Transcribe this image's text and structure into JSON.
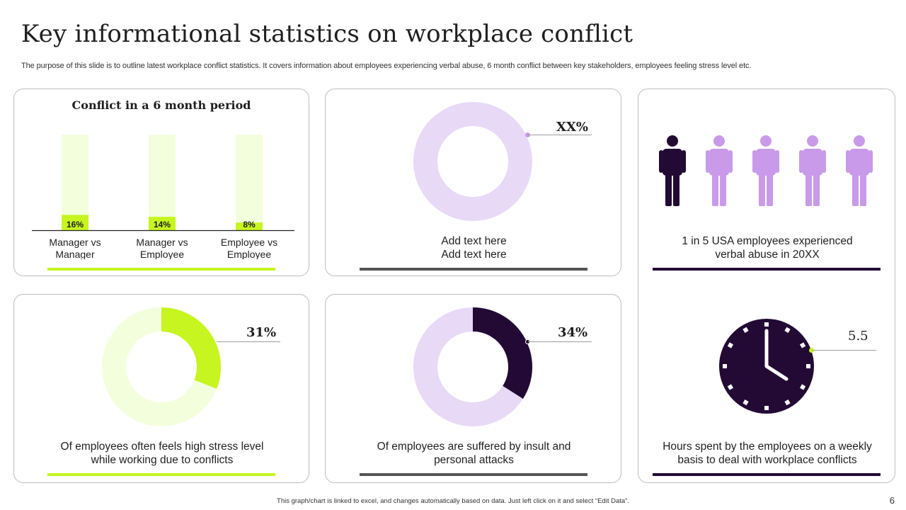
{
  "title": "Key informational statistics on workplace conflict",
  "subtitle": "The purpose of this slide is to outline latest workplace conflict statistics. It covers information about employees experiencing verbal abuse, 6 month conflict between key stakeholders, employees feeling stress level etc.",
  "colors": {
    "lime": "#c6f51f",
    "lime_light": "#f3fedc",
    "purple_dark": "#230a35",
    "purple_mid": "#c99aea",
    "purple_light": "#e8d9f7",
    "grey_bar": "#555555"
  },
  "card_bar_chart": {
    "chart_data": {
      "type": "bar",
      "title": "Conflict in a 6 month period",
      "categories": [
        "Manager vs Manager",
        "Manager vs Employee",
        "Employee vs Employee"
      ],
      "category_lines": [
        [
          "Manager vs",
          "Manager"
        ],
        [
          "Manager vs",
          "Employee"
        ],
        [
          "Employee vs",
          "Employee"
        ]
      ],
      "values": [
        16,
        14,
        8
      ],
      "value_labels": [
        "16%",
        "14%",
        "8%"
      ],
      "ylim": [
        0,
        100
      ]
    }
  },
  "card_donut_top": {
    "chart_data": {
      "type": "pie",
      "label": "XX%",
      "value": null
    },
    "caption_line1": "Add text here",
    "caption_line2": "Add text here"
  },
  "card_people": {
    "people_total": 5,
    "people_highlighted": 1,
    "caption_line1": "1 in 5 USA employees experienced",
    "caption_line2": "verbal abuse in 20XX"
  },
  "card_clock": {
    "value_label": "5.5",
    "caption_line1": "Hours spent by the employees on a weekly",
    "caption_line2": "basis to deal with workplace conflicts"
  },
  "card_stress": {
    "chart_data": {
      "type": "pie",
      "label": "31%",
      "value": 31
    },
    "caption_line1": "Of employees often feels high stress level",
    "caption_line2": "while working due to conflicts"
  },
  "card_insult": {
    "chart_data": {
      "type": "pie",
      "label": "34%",
      "value": 34
    },
    "caption_line1": "Of employees are suffered by insult and",
    "caption_line2": "personal attacks"
  },
  "footer": "This graph/chart is linked to excel, and changes automatically based on data. Just left click on it and select “Edit Data”.",
  "page_number": "6"
}
